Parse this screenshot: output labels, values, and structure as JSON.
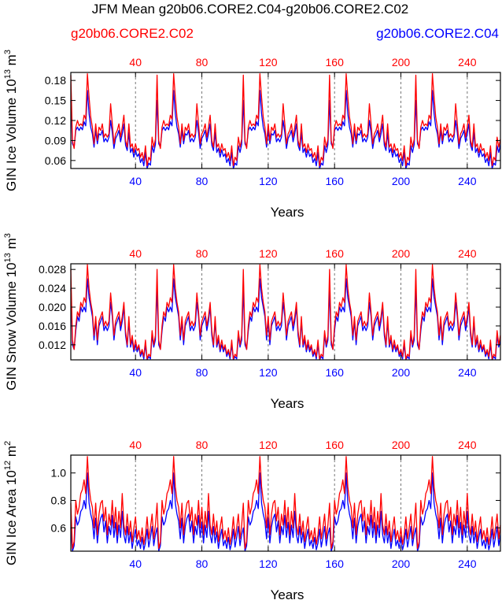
{
  "figure": {
    "title": "JFM Mean g20b06.CORE2.C04-g20b06.CORE2.C02",
    "legend_red": "g20b06.CORE2.C02",
    "legend_blue": "g20b06.CORE2.C04",
    "color_red": "#ff0000",
    "color_blue": "#0000ff"
  },
  "chart_data": [
    {
      "type": "line",
      "title": "JFM Mean g20b06.CORE2.C04-g20b06.CORE2.C02",
      "ylabel": "GIN Ice Volume 10",
      "ylabel_exp": "13",
      "ylabel_unit": " m",
      "ylabel_unit_exp": "3",
      "xlabel": "Years",
      "xlim": [
        1,
        260
      ],
      "ylim": [
        0.048,
        0.192
      ],
      "yticks": [
        0.06,
        0.09,
        0.12,
        0.15,
        0.18
      ],
      "yticklabels": [
        "0.06",
        "0.09",
        "0.12",
        "0.15",
        "0.18"
      ],
      "xticks": [
        40,
        80,
        120,
        160,
        200,
        240
      ],
      "xticklabels": [
        "40",
        "80",
        "120",
        "160",
        "200",
        "240"
      ],
      "x_start": 1,
      "cycle_length": 52,
      "series": [
        {
          "name": "g20b06.CORE2.C02",
          "color": "#ff0000",
          "cycle_values": [
            0.188,
            0.09,
            0.078,
            0.11,
            0.12,
            0.112,
            0.115,
            0.112,
            0.128,
            0.122,
            0.19,
            0.155,
            0.125,
            0.11,
            0.085,
            0.115,
            0.09,
            0.11,
            0.105,
            0.115,
            0.095,
            0.1,
            0.095,
            0.1,
            0.145,
            0.115,
            0.085,
            0.1,
            0.105,
            0.115,
            0.095,
            0.11,
            0.128,
            0.09,
            0.08,
            0.115,
            0.08,
            0.085,
            0.072,
            0.085,
            0.075,
            0.078,
            0.065,
            0.072,
            0.06,
            0.082,
            0.052,
            0.065,
            0.06,
            0.095,
            0.08,
            0.092
          ]
        },
        {
          "name": "g20b06.CORE2.C04",
          "color": "#0000ff",
          "cycle_values": [
            0.15,
            0.085,
            0.08,
            0.105,
            0.11,
            0.105,
            0.11,
            0.106,
            0.118,
            0.112,
            0.165,
            0.13,
            0.11,
            0.1,
            0.08,
            0.105,
            0.085,
            0.1,
            0.098,
            0.105,
            0.088,
            0.093,
            0.088,
            0.095,
            0.12,
            0.102,
            0.078,
            0.093,
            0.098,
            0.105,
            0.088,
            0.1,
            0.115,
            0.083,
            0.075,
            0.102,
            0.072,
            0.078,
            0.065,
            0.076,
            0.066,
            0.07,
            0.057,
            0.063,
            0.052,
            0.072,
            0.048,
            0.056,
            0.053,
            0.082,
            0.072,
            0.084
          ]
        }
      ]
    },
    {
      "type": "line",
      "ylabel": "GIN Snow Volume 10",
      "ylabel_exp": "13",
      "ylabel_unit": " m",
      "ylabel_unit_exp": "3",
      "xlabel": "Years",
      "xlim": [
        1,
        260
      ],
      "ylim": [
        0.0088,
        0.0292
      ],
      "yticks": [
        0.012,
        0.016,
        0.02,
        0.024,
        0.028
      ],
      "yticklabels": [
        "0.012",
        "0.016",
        "0.020",
        "0.024",
        "0.028"
      ],
      "xticks": [
        40,
        80,
        120,
        160,
        200,
        240
      ],
      "xticklabels": [
        "40",
        "80",
        "120",
        "160",
        "200",
        "240"
      ],
      "x_start": 1,
      "cycle_length": 52,
      "series": [
        {
          "name": "g20b06.CORE2.C02",
          "color": "#ff0000",
          "cycle_values": [
            0.028,
            0.013,
            0.011,
            0.016,
            0.019,
            0.018,
            0.021,
            0.02,
            0.022,
            0.021,
            0.029,
            0.024,
            0.021,
            0.019,
            0.014,
            0.018,
            0.013,
            0.017,
            0.018,
            0.019,
            0.016,
            0.017,
            0.016,
            0.017,
            0.023,
            0.019,
            0.014,
            0.017,
            0.018,
            0.019,
            0.016,
            0.018,
            0.021,
            0.015,
            0.012,
            0.018,
            0.012,
            0.014,
            0.011,
            0.013,
            0.011,
            0.012,
            0.01,
            0.011,
            0.0095,
            0.013,
            0.009,
            0.01,
            0.0095,
            0.015,
            0.012,
            0.014
          ]
        },
        {
          "name": "g20b06.CORE2.C04",
          "color": "#0000ff",
          "cycle_values": [
            0.024,
            0.012,
            0.011,
            0.015,
            0.018,
            0.017,
            0.02,
            0.019,
            0.02,
            0.019,
            0.026,
            0.022,
            0.02,
            0.018,
            0.013,
            0.017,
            0.012,
            0.016,
            0.017,
            0.018,
            0.015,
            0.016,
            0.015,
            0.016,
            0.021,
            0.018,
            0.013,
            0.016,
            0.017,
            0.018,
            0.015,
            0.017,
            0.02,
            0.014,
            0.0115,
            0.017,
            0.0115,
            0.013,
            0.0105,
            0.012,
            0.0105,
            0.0115,
            0.0095,
            0.0105,
            0.009,
            0.012,
            0.0088,
            0.0095,
            0.009,
            0.014,
            0.0115,
            0.013
          ]
        }
      ]
    },
    {
      "type": "line",
      "ylabel": "GIN Ice Area 10",
      "ylabel_exp": "12",
      "ylabel_unit": " m",
      "ylabel_unit_exp": "2",
      "xlabel": "Years",
      "xlim": [
        1,
        260
      ],
      "ylim": [
        0.43,
        1.13
      ],
      "yticks": [
        0.6,
        0.8,
        1.0
      ],
      "yticklabels": [
        "0.6",
        "0.8",
        "1.0"
      ],
      "xticks": [
        40,
        80,
        120,
        160,
        200,
        240
      ],
      "xticklabels": [
        "40",
        "80",
        "120",
        "160",
        "200",
        "240"
      ],
      "x_start": 1,
      "cycle_length": 52,
      "series": [
        {
          "name": "g20b06.CORE2.C02",
          "color": "#ff0000",
          "cycle_values": [
            0.78,
            0.45,
            0.5,
            0.8,
            0.7,
            0.75,
            0.85,
            0.88,
            0.95,
            0.85,
            1.12,
            0.9,
            0.8,
            0.75,
            0.6,
            0.78,
            0.55,
            0.7,
            0.78,
            0.8,
            0.65,
            0.75,
            0.55,
            0.7,
            0.62,
            0.8,
            0.6,
            0.75,
            0.55,
            0.72,
            0.6,
            0.85,
            0.62,
            0.55,
            0.7,
            0.55,
            0.65,
            0.5,
            0.6,
            0.68,
            0.52,
            0.58,
            0.5,
            0.6,
            0.48,
            0.55,
            0.68,
            0.52,
            0.6,
            0.7,
            0.52,
            0.62
          ]
        },
        {
          "name": "g20b06.CORE2.C04",
          "color": "#0000ff",
          "cycle_values": [
            0.6,
            0.43,
            0.47,
            0.68,
            0.62,
            0.65,
            0.72,
            0.74,
            0.8,
            0.74,
            1.0,
            0.78,
            0.7,
            0.65,
            0.52,
            0.67,
            0.49,
            0.61,
            0.67,
            0.7,
            0.57,
            0.65,
            0.49,
            0.61,
            0.55,
            0.69,
            0.53,
            0.64,
            0.49,
            0.62,
            0.53,
            0.72,
            0.55,
            0.49,
            0.61,
            0.49,
            0.57,
            0.45,
            0.53,
            0.59,
            0.47,
            0.51,
            0.45,
            0.53,
            0.44,
            0.49,
            0.59,
            0.46,
            0.53,
            0.61,
            0.47,
            0.55
          ]
        }
      ]
    }
  ]
}
